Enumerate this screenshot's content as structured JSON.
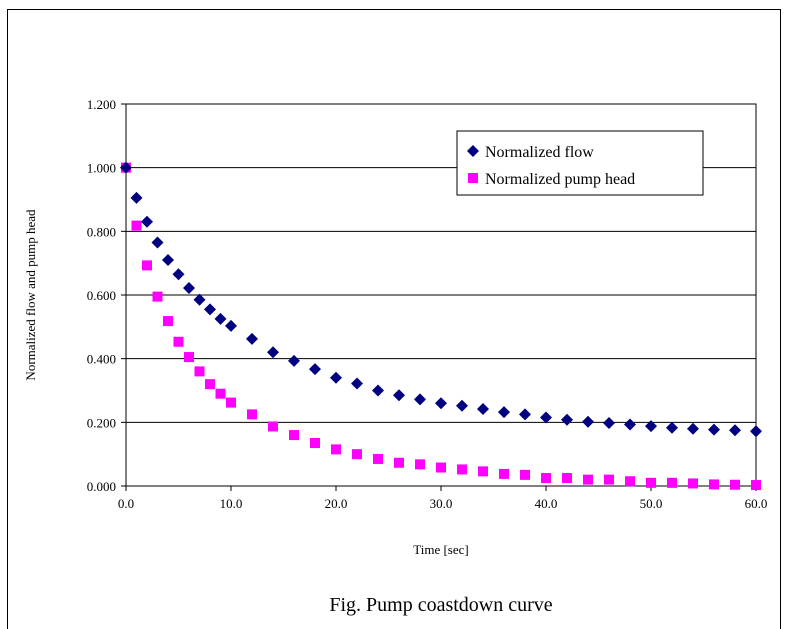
{
  "chart_data": {
    "type": "scatter",
    "caption": "Fig. Pump coastdown curve",
    "xlabel": "Time [sec]",
    "ylabel": "Normalized flow and pump head",
    "xlim": [
      0,
      60
    ],
    "ylim": [
      0,
      1.2
    ],
    "x_ticks": [
      "0.0",
      "10.0",
      "20.0",
      "30.0",
      "40.0",
      "50.0",
      "60.0"
    ],
    "y_ticks": [
      "0.000",
      "0.200",
      "0.400",
      "0.600",
      "0.800",
      "1.000",
      "1.200"
    ],
    "grid": "horizontal",
    "legend_position": "top-right",
    "series": [
      {
        "name": "Normalized flow",
        "marker": "diamond",
        "color": "#000080",
        "x": [
          0,
          1,
          2,
          3,
          4,
          5,
          6,
          7,
          8,
          9,
          10,
          12,
          14,
          16,
          18,
          20,
          22,
          24,
          26,
          28,
          30,
          32,
          34,
          36,
          38,
          40,
          42,
          44,
          46,
          48,
          50,
          52,
          54,
          56,
          58,
          60
        ],
        "y": [
          1.0,
          0.905,
          0.83,
          0.765,
          0.71,
          0.665,
          0.622,
          0.585,
          0.555,
          0.525,
          0.503,
          0.462,
          0.42,
          0.393,
          0.367,
          0.34,
          0.322,
          0.3,
          0.285,
          0.272,
          0.26,
          0.252,
          0.242,
          0.232,
          0.225,
          0.215,
          0.208,
          0.202,
          0.198,
          0.193,
          0.188,
          0.183,
          0.18,
          0.177,
          0.175,
          0.172
        ]
      },
      {
        "name": "Normalized pump head",
        "marker": "square",
        "color": "#ff00ff",
        "x": [
          0,
          1,
          2,
          3,
          4,
          5,
          6,
          7,
          8,
          9,
          10,
          12,
          14,
          16,
          18,
          20,
          22,
          24,
          26,
          28,
          30,
          32,
          34,
          36,
          38,
          40,
          42,
          44,
          46,
          48,
          50,
          52,
          54,
          56,
          58,
          60
        ],
        "y": [
          1.0,
          0.818,
          0.693,
          0.595,
          0.518,
          0.453,
          0.405,
          0.36,
          0.32,
          0.29,
          0.262,
          0.225,
          0.187,
          0.16,
          0.135,
          0.115,
          0.1,
          0.085,
          0.073,
          0.068,
          0.058,
          0.052,
          0.046,
          0.038,
          0.035,
          0.025,
          0.025,
          0.02,
          0.02,
          0.015,
          0.01,
          0.01,
          0.008,
          0.005,
          0.004,
          0.003
        ]
      }
    ]
  }
}
